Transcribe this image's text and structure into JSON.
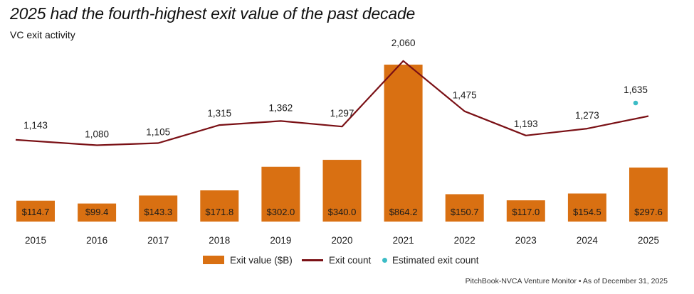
{
  "chart_data": {
    "type": "bar",
    "title": "2025 had the fourth-highest exit value of the past decade",
    "subtitle": "VC exit activity",
    "categories": [
      "2015",
      "2016",
      "2017",
      "2018",
      "2019",
      "2020",
      "2021",
      "2022",
      "2023",
      "2024",
      "2025"
    ],
    "series": [
      {
        "name": "Exit value ($B)",
        "kind": "bar",
        "values": [
          114.7,
          99.4,
          143.3,
          171.8,
          302.0,
          340.0,
          864.2,
          150.7,
          117.0,
          154.5,
          297.6
        ],
        "labels": [
          "$114.7",
          "$99.4",
          "$143.3",
          "$171.8",
          "$302.0",
          "$340.0",
          "$864.2",
          "$150.7",
          "$117.0",
          "$154.5",
          "$297.6"
        ]
      },
      {
        "name": "Exit count",
        "kind": "line",
        "values": [
          1143,
          1080,
          1105,
          1315,
          1362,
          1297,
          2060,
          1475,
          1193,
          1273,
          1419
        ],
        "labels": [
          "1,143",
          "1,080",
          "1,105",
          "1,315",
          "1,362",
          "1,297",
          "2,060",
          "1,475",
          "1,193",
          "1,273",
          ""
        ]
      },
      {
        "name": "Estimated exit count",
        "kind": "point",
        "category": "2025",
        "value": 1635,
        "label": "1,635"
      }
    ],
    "ylim_value": [
      0,
      900
    ],
    "ylim_count": [
      0,
      2200
    ],
    "colors": {
      "bar": "#d97012",
      "line": "#7a1015",
      "dot": "#3cbcc6",
      "text": "#1a1a1a"
    }
  },
  "legend": {
    "bar_label": "Exit value ($B)",
    "line_label": "Exit count",
    "dot_label": "Estimated exit count"
  },
  "source": "PitchBook-NVCA Venture Monitor  •  As of December 31, 2025"
}
